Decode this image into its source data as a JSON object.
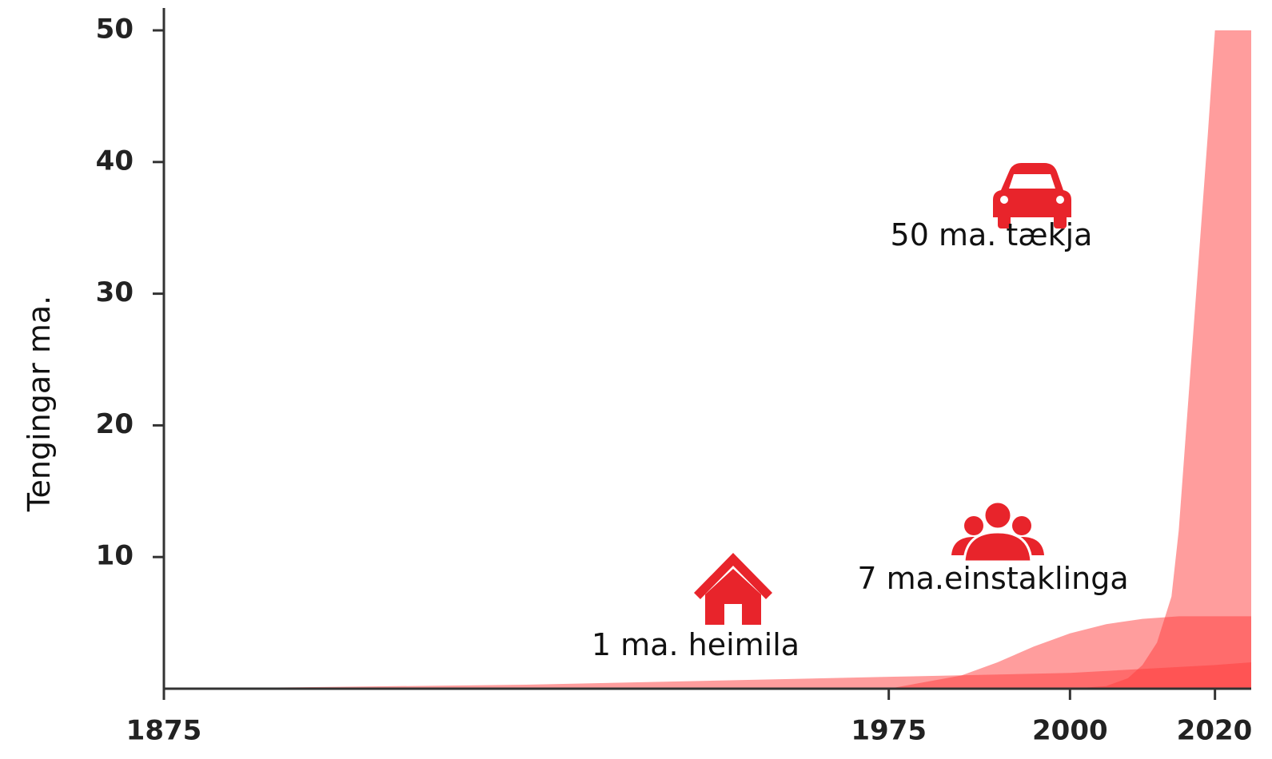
{
  "chart_data": {
    "type": "area",
    "ylabel": "Tengingar ma.",
    "xlim": [
      1875,
      2025
    ],
    "xticks": [
      1875,
      1975,
      2000,
      2020
    ],
    "ylim": [
      0,
      50
    ],
    "yticks": [
      10,
      20,
      30,
      40,
      50
    ],
    "series": [
      {
        "name": "1 ma. heimila",
        "color": "#ff3b3b",
        "x": [
          1875,
          1925,
          1950,
          1975,
          2000,
          2020,
          2025
        ],
        "values": [
          0,
          0.3,
          0.6,
          0.9,
          1.2,
          1.8,
          2
        ]
      },
      {
        "name": "7 ma.einstaklinga",
        "color": "#ff3b3b",
        "x": [
          1975,
          1985,
          1990,
          1995,
          2000,
          2005,
          2010,
          2015,
          2025
        ],
        "values": [
          0,
          1,
          2,
          3.2,
          4.2,
          4.9,
          5.3,
          5.5,
          5.5
        ]
      },
      {
        "name": "50 ma. tækja",
        "color": "#ff3b3b",
        "x": [
          2000,
          2005,
          2008,
          2010,
          2012,
          2014,
          2015,
          2017,
          2019,
          2020,
          2025
        ],
        "values": [
          0,
          0.2,
          0.8,
          1.8,
          3.5,
          7,
          12,
          27,
          42,
          50,
          50
        ]
      }
    ]
  }
}
